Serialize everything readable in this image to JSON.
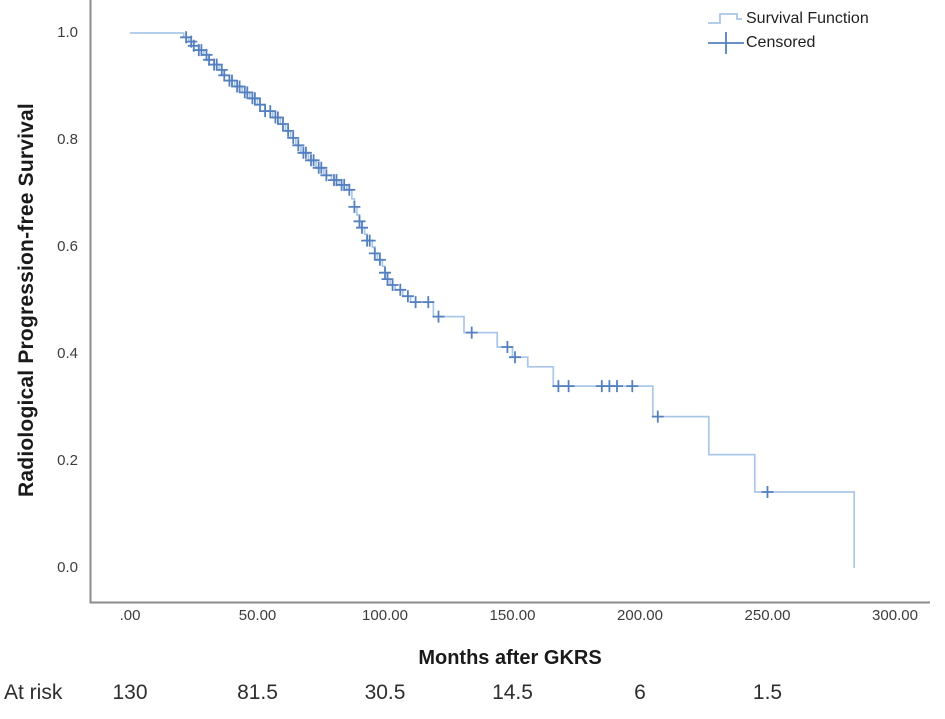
{
  "chart_data": {
    "type": "line",
    "subtype": "kaplan-meier-step",
    "title": "",
    "xlabel": "Months after GKRS",
    "ylabel": "Radiological Progression-free Survival",
    "xlim": [
      0,
      300
    ],
    "ylim": [
      0.0,
      1.0
    ],
    "grid": false,
    "x_ticks": [
      {
        "value": 0,
        "label": ".00"
      },
      {
        "value": 50,
        "label": "50.00"
      },
      {
        "value": 100,
        "label": "100.00"
      },
      {
        "value": 150,
        "label": "150.00"
      },
      {
        "value": 200,
        "label": "200.00"
      },
      {
        "value": 250,
        "label": "250.00"
      },
      {
        "value": 300,
        "label": "300.00"
      }
    ],
    "y_ticks": [
      {
        "value": 1.0,
        "label": "1.0"
      },
      {
        "value": 0.8,
        "label": "0.8"
      },
      {
        "value": 0.6,
        "label": "0.6"
      },
      {
        "value": 0.4,
        "label": "0.4"
      },
      {
        "value": 0.2,
        "label": "0.2"
      },
      {
        "value": 0.0,
        "label": "0.0"
      }
    ],
    "legend": {
      "position": "top-right",
      "entries": [
        {
          "label": "Survival Function",
          "marker": "step-line"
        },
        {
          "label": "Censored",
          "marker": "plus"
        }
      ]
    },
    "series": {
      "name": "Survival Function",
      "start": [
        0,
        1.0
      ],
      "steps": [
        [
          21,
          0.992
        ],
        [
          23,
          0.984
        ],
        [
          25,
          0.976
        ],
        [
          27,
          0.968
        ],
        [
          29,
          0.959
        ],
        [
          31,
          0.95
        ],
        [
          33,
          0.941
        ],
        [
          35,
          0.931
        ],
        [
          37,
          0.921
        ],
        [
          39,
          0.911
        ],
        [
          41,
          0.9
        ],
        [
          44,
          0.889
        ],
        [
          47,
          0.878
        ],
        [
          50,
          0.866
        ],
        [
          53,
          0.854
        ],
        [
          56,
          0.842
        ],
        [
          59,
          0.83
        ],
        [
          61,
          0.817
        ],
        [
          63,
          0.804
        ],
        [
          65,
          0.79
        ],
        [
          67,
          0.776
        ],
        [
          70,
          0.762
        ],
        [
          73,
          0.748
        ],
        [
          76,
          0.734
        ],
        [
          79,
          0.725
        ],
        [
          82,
          0.716
        ],
        [
          85,
          0.707
        ],
        [
          87,
          0.69
        ],
        [
          88,
          0.675
        ],
        [
          89,
          0.66
        ],
        [
          90,
          0.648
        ],
        [
          91,
          0.636
        ],
        [
          92,
          0.624
        ],
        [
          93,
          0.612
        ],
        [
          95,
          0.6
        ],
        [
          96,
          0.588
        ],
        [
          97,
          0.576
        ],
        [
          99,
          0.564
        ],
        [
          100,
          0.552
        ],
        [
          101,
          0.54
        ],
        [
          102,
          0.529
        ],
        [
          104,
          0.52
        ],
        [
          107,
          0.508
        ],
        [
          110,
          0.497
        ],
        [
          119,
          0.47
        ],
        [
          131,
          0.44
        ],
        [
          144,
          0.413
        ],
        [
          150,
          0.394
        ],
        [
          156,
          0.376
        ],
        [
          166,
          0.34
        ],
        [
          205,
          0.283
        ],
        [
          227,
          0.212
        ],
        [
          245,
          0.142
        ],
        [
          284,
          0.0
        ]
      ]
    },
    "censored_times": [
      22,
      24,
      25,
      27,
      28,
      30,
      31,
      33,
      34,
      36,
      37,
      39,
      40,
      42,
      43,
      45,
      46,
      48,
      49,
      51,
      53,
      55,
      57,
      58,
      60,
      62,
      64,
      66,
      68,
      69,
      71,
      72,
      74,
      75,
      77,
      80,
      81,
      83,
      84,
      86,
      88,
      90,
      91,
      93,
      94,
      96,
      98,
      100,
      101,
      103,
      106,
      109,
      112,
      117,
      121,
      134,
      148,
      151,
      168,
      172,
      185,
      188,
      191,
      197,
      207,
      250
    ],
    "at_risk": {
      "label": "At risk",
      "times": [
        0,
        50,
        100,
        150,
        200,
        250
      ],
      "values": [
        "130",
        "81.5",
        "30.5",
        "14.5",
        "6",
        "1.5"
      ]
    },
    "colors": {
      "line": "#a9c7e8",
      "censor": "#5580bf",
      "axis": "#8c8c8c",
      "tick_text": "#3d3d3d",
      "label_text": "#1a1a1a"
    }
  }
}
